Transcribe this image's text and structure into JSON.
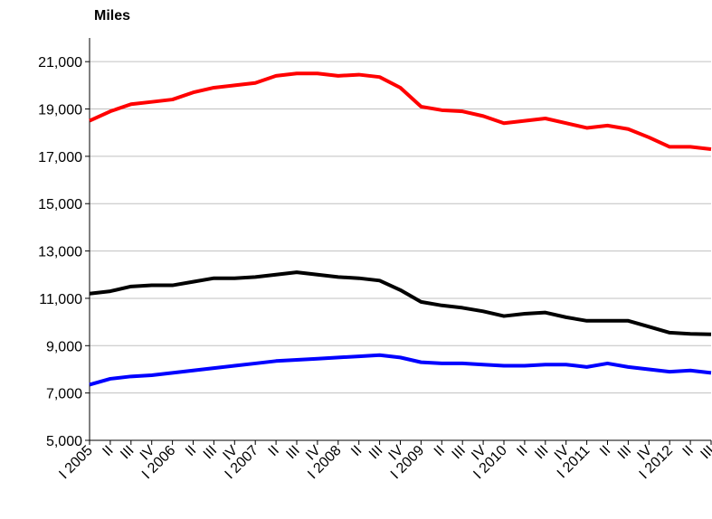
{
  "chart_data": {
    "type": "line",
    "y_label": "Miles",
    "categories": [
      "I 2005",
      "II",
      "III",
      "IV",
      "I 2006",
      "II",
      "III",
      "IV",
      "I 2007",
      "II",
      "III",
      "IV",
      "I 2008",
      "II",
      "III",
      "IV",
      "I 2009",
      "II",
      "III",
      "IV",
      "I 2010",
      "II",
      "III",
      "IV",
      "I 2011",
      "II",
      "III",
      "IV",
      "I 2012",
      "II",
      "III"
    ],
    "series": [
      {
        "color": "#ff0000",
        "values": [
          18500,
          18900,
          19200,
          19300,
          19400,
          19700,
          19900,
          20000,
          20100,
          20400,
          20500,
          20500,
          20400,
          20450,
          20350,
          19900,
          19100,
          18950,
          18900,
          18700,
          18400,
          18500,
          18600,
          18400,
          18200,
          18300,
          18150,
          17800,
          17400,
          17400,
          17300
        ]
      },
      {
        "color": "#000000",
        "values": [
          11200,
          11300,
          11500,
          11550,
          11550,
          11700,
          11850,
          11850,
          11900,
          12000,
          12100,
          12000,
          11900,
          11850,
          11750,
          11350,
          10850,
          10700,
          10600,
          10450,
          10250,
          10350,
          10400,
          10200,
          10050,
          10050,
          10050,
          9800,
          9550,
          9500,
          9480
        ]
      },
      {
        "color": "#0000ff",
        "values": [
          7350,
          7600,
          7700,
          7750,
          7850,
          7950,
          8050,
          8150,
          8250,
          8350,
          8400,
          8450,
          8500,
          8550,
          8600,
          8500,
          8300,
          8250,
          8250,
          8200,
          8150,
          8150,
          8200,
          8200,
          8100,
          8250,
          8100,
          8000,
          7900,
          7950,
          7850
        ]
      }
    ],
    "ylim": [
      5000,
      22000
    ],
    "yticks": [
      {
        "value": 5000,
        "label": "5,000"
      },
      {
        "value": 7000,
        "label": "7,000"
      },
      {
        "value": 9000,
        "label": "9,000"
      },
      {
        "value": 11000,
        "label": "11,000"
      },
      {
        "value": 13000,
        "label": "13,000"
      },
      {
        "value": 15000,
        "label": "15,000"
      },
      {
        "value": 17000,
        "label": "17,000"
      },
      {
        "value": 19000,
        "label": "19,000"
      },
      {
        "value": 21000,
        "label": "21,000"
      }
    ],
    "grid": true
  }
}
